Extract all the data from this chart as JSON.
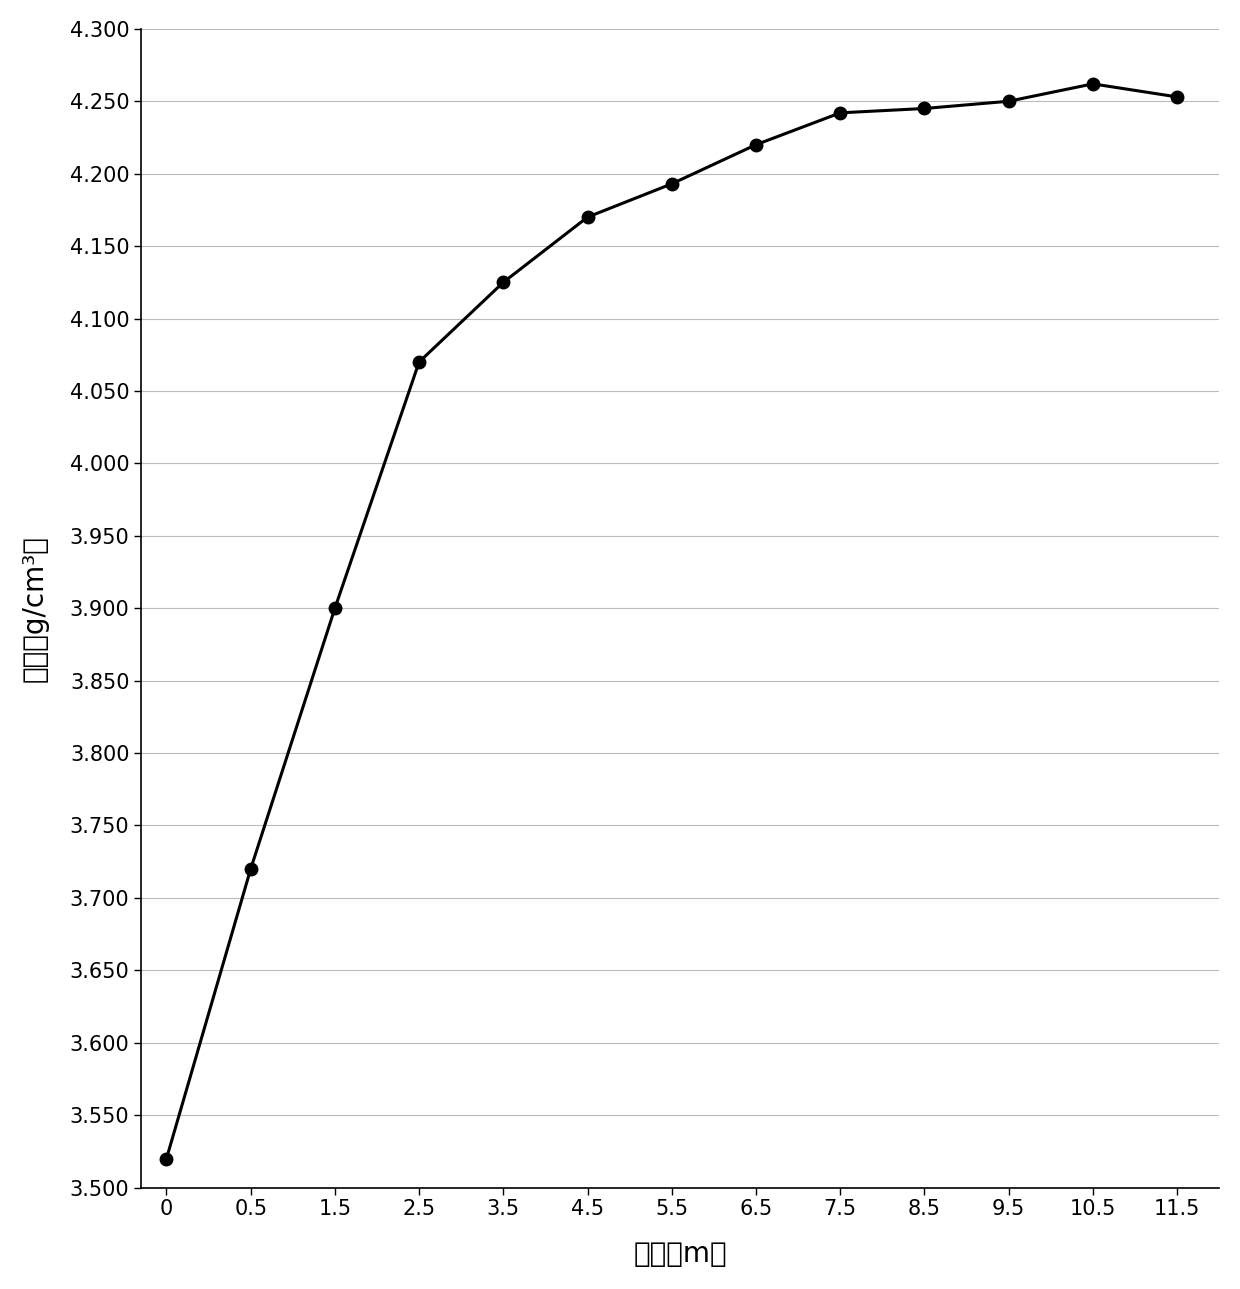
{
  "x_indices": [
    0,
    1,
    2,
    3,
    4,
    5,
    6,
    7,
    8,
    9,
    10,
    11,
    12
  ],
  "x_tick_labels": [
    "0",
    "0.5",
    "1.5",
    "2.5",
    "3.5",
    "4.5",
    "5.5",
    "6.5",
    "7.5",
    "8.5",
    "9.5",
    "10.5",
    "11.5"
  ],
  "y": [
    3.52,
    3.72,
    3.9,
    4.07,
    4.125,
    4.17,
    4.193,
    4.22,
    4.242,
    4.245,
    4.25,
    4.262,
    4.253
  ],
  "ylim": [
    3.5,
    4.3
  ],
  "xlim": [
    -0.3,
    12.5
  ],
  "y_ticks": [
    3.5,
    3.55,
    3.6,
    3.65,
    3.7,
    3.75,
    3.8,
    3.85,
    3.9,
    3.95,
    4.0,
    4.05,
    4.1,
    4.15,
    4.2,
    4.25,
    4.3
  ],
  "ylabel": "容量（g/cm³）",
  "xlabel": "深度（m）",
  "line_color": "#000000",
  "marker_color": "#000000",
  "marker_style": "o",
  "marker_size": 9,
  "line_width": 2.2,
  "background_color": "#ffffff",
  "grid_color": "#bbbbbb",
  "label_fontsize": 20,
  "tick_fontsize": 15
}
